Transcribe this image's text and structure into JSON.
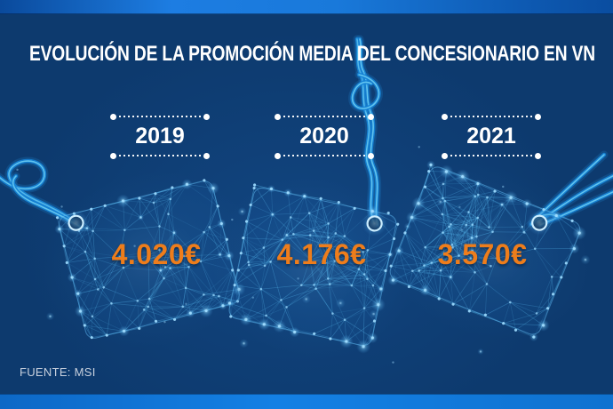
{
  "title": "EVOLUCIÓN DE LA PROMOCIÓN MEDIA DEL CONCESIONARIO EN VN",
  "source": "FUENTE: MSI",
  "columns": [
    {
      "year": "2019",
      "price": "4.020€"
    },
    {
      "year": "2020",
      "price": "4.176€"
    },
    {
      "year": "2021",
      "price": "3.570€"
    }
  ],
  "chart_data": {
    "type": "bar",
    "title": "EVOLUCIÓN DE LA PROMOCIÓN MEDIA DEL CONCESIONARIO EN VN",
    "categories": [
      "2019",
      "2020",
      "2021"
    ],
    "values": [
      4020,
      4176,
      3570
    ],
    "unit": "€",
    "value_labels": [
      "4.020€",
      "4.176€",
      "3.570€"
    ],
    "source": "FUENTE: MSI",
    "legend": false,
    "notes": "Values displayed on glowing network-mesh price tags, one per year"
  },
  "colors": {
    "background": "#0d3a6e",
    "strip_blue": "#1379dd",
    "title_text": "#ffffff",
    "year_text": "#ffffff",
    "price_text": "#ee7d1b",
    "source_text": "#c7d0dd",
    "mesh_line": "#55b6ec",
    "mesh_dot": "#9fdcff",
    "cord": "#1582d5",
    "cord_highlight": "#6fd0f5"
  }
}
